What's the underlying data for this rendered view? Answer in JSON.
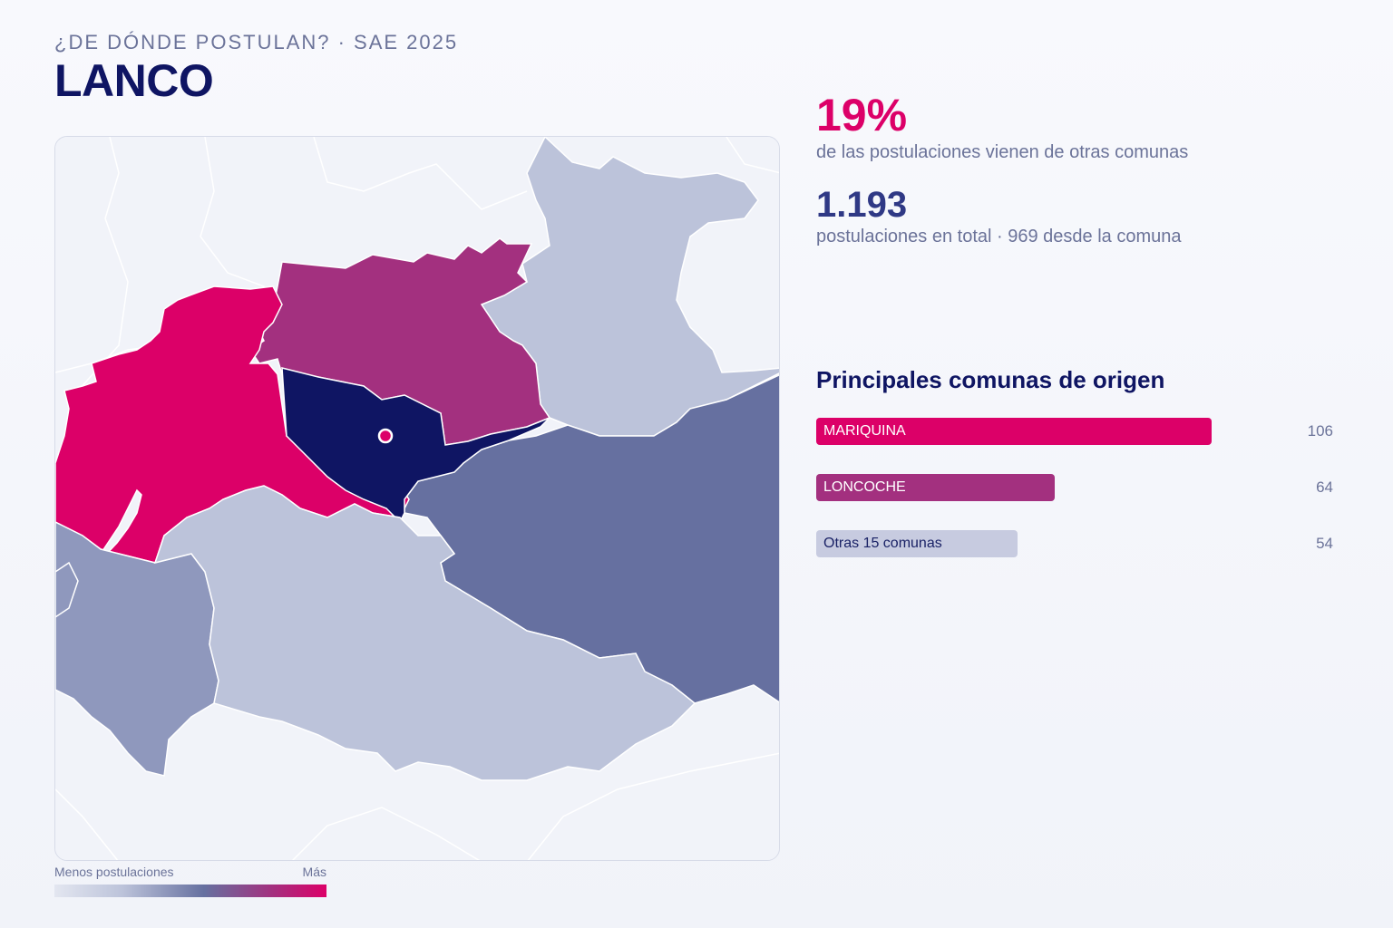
{
  "header": {
    "subtitle": "¿DE DÓNDE POSTULAN? · SAE 2025",
    "title": "LANCO"
  },
  "stats": {
    "external_pct": "19%",
    "external_desc": "de las postulaciones vienen de otras comunas",
    "total": "1.193",
    "total_desc": "postulaciones en total · 969 desde la comuna"
  },
  "origins": {
    "title": "Principales comunas de origen",
    "max_value": 106,
    "items": [
      {
        "name": "MARIQUINA",
        "value": 106,
        "color": "#dc0068",
        "text_color": "#ffffff"
      },
      {
        "name": "LONCOCHE",
        "value": 64,
        "color": "#a3307f",
        "text_color": "#ffffff"
      },
      {
        "name": "Otras 15 comunas",
        "value": 54,
        "color": "#c7cbe0",
        "text_color": "#1a2266"
      }
    ]
  },
  "legend": {
    "low": "Menos postulaciones",
    "high": "Más"
  },
  "map": {
    "colors": {
      "background": "#f1f3f9",
      "origin_comuna": "#0f1563",
      "top_1": "#dc0068",
      "top_2": "#a3307f",
      "mid": "#6670a0",
      "low_mid": "#8f98bd",
      "low": "#bcc3da",
      "marker": "#dc0068"
    }
  }
}
